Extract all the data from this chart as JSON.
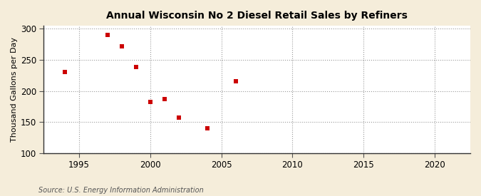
{
  "title": "Annual Wisconsin No 2 Diesel Retail Sales by Refiners",
  "ylabel": "Thousand Gallons per Day",
  "source": "Source: U.S. Energy Information Administration",
  "fig_bg_color": "#f5edda",
  "plot_bg_color": "#ffffff",
  "marker_color": "#cc0000",
  "marker": "s",
  "marker_size": 4,
  "xlim": [
    1992.5,
    2022.5
  ],
  "ylim": [
    100,
    305
  ],
  "xticks": [
    1995,
    2000,
    2005,
    2010,
    2015,
    2020
  ],
  "yticks": [
    100,
    150,
    200,
    250,
    300
  ],
  "years": [
    1994,
    1997,
    1998,
    1999,
    2000,
    2001,
    2002,
    2004,
    2006
  ],
  "values": [
    230,
    290,
    272,
    238,
    183,
    187,
    157,
    140,
    216
  ]
}
